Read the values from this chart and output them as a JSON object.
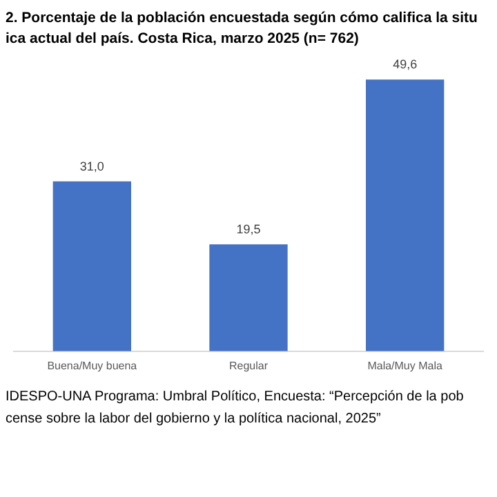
{
  "chart_data": {
    "type": "bar",
    "title": "2. Porcentaje de la población encuestada según cómo califica la situ\nica actual del país. Costa Rica, marzo 2025 (n= 762)",
    "categories": [
      "Buena/Muy buena",
      "Regular",
      "Mala/Muy Mala"
    ],
    "values": [
      31.0,
      19.5,
      49.6
    ],
    "value_labels": [
      "31,0",
      "19,5",
      "49,6"
    ],
    "color": "#4472c4",
    "grid": false,
    "legend": false,
    "annotations": [
      "IDESPO-UNA Programa: Umbral Político, Encuesta: “Percepción de la pob\ncense sobre la labor del gobierno y la política nacional, 2025”"
    ]
  }
}
